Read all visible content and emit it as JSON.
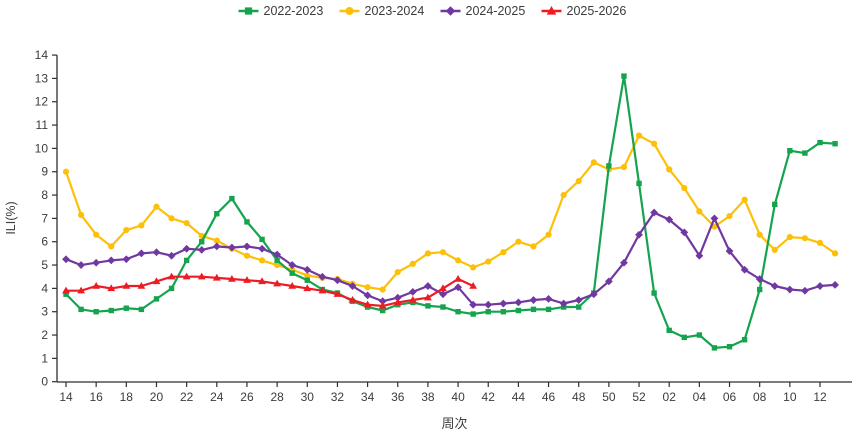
{
  "chart_data": {
    "type": "line",
    "title": "",
    "xlabel": "周次",
    "ylabel": "ILI(%)",
    "ylim": [
      0,
      14
    ],
    "ytick_step": 1,
    "grid": false,
    "legend_position": "top-center",
    "categories": [
      "14",
      "15",
      "16",
      "17",
      "18",
      "19",
      "20",
      "21",
      "22",
      "23",
      "24",
      "25",
      "26",
      "27",
      "28",
      "29",
      "30",
      "31",
      "32",
      "33",
      "34",
      "35",
      "36",
      "37",
      "38",
      "39",
      "40",
      "41",
      "42",
      "43",
      "44",
      "45",
      "46",
      "47",
      "48",
      "49",
      "50",
      "51",
      "52",
      "01",
      "02",
      "03",
      "04",
      "05",
      "06",
      "07",
      "08",
      "09",
      "10",
      "11",
      "12",
      "13"
    ],
    "x_ticks_shown": [
      "14",
      "16",
      "18",
      "20",
      "22",
      "24",
      "26",
      "28",
      "30",
      "32",
      "34",
      "36",
      "38",
      "40",
      "42",
      "44",
      "46",
      "48",
      "50",
      "52",
      "02",
      "04",
      "06",
      "08",
      "10",
      "12"
    ],
    "series": [
      {
        "name": "2022-2023",
        "color": "#14A44D",
        "marker": "square",
        "values": [
          3.75,
          3.1,
          3.0,
          3.05,
          3.15,
          3.1,
          3.55,
          4.0,
          5.2,
          6.0,
          7.2,
          7.85,
          6.85,
          6.1,
          5.2,
          4.65,
          4.35,
          3.95,
          3.8,
          3.45,
          3.2,
          3.05,
          3.3,
          3.4,
          3.25,
          3.2,
          3.0,
          2.9,
          3.0,
          3.0,
          3.05,
          3.1,
          3.1,
          3.2,
          3.2,
          3.8,
          9.25,
          13.1,
          8.5,
          3.8,
          2.2,
          1.9,
          2.0,
          1.45,
          1.5,
          1.8,
          3.95,
          7.6,
          9.9,
          9.8,
          10.25,
          10.2
        ]
      },
      {
        "name": "2023-2024",
        "color": "#FDC008",
        "marker": "circle",
        "values": [
          9.0,
          7.15,
          6.3,
          5.8,
          6.5,
          6.7,
          7.5,
          7.0,
          6.8,
          6.25,
          6.05,
          5.7,
          5.4,
          5.2,
          5.0,
          4.8,
          4.55,
          4.45,
          4.4,
          4.2,
          4.05,
          3.95,
          4.7,
          5.05,
          5.5,
          5.55,
          5.2,
          4.9,
          5.15,
          5.55,
          6.0,
          5.8,
          6.3,
          8.0,
          8.6,
          9.4,
          9.1,
          9.2,
          10.55,
          10.2,
          9.1,
          8.3,
          7.3,
          6.65,
          7.1,
          7.8,
          6.3,
          5.65,
          6.2,
          6.15,
          5.95,
          5.5
        ]
      },
      {
        "name": "2024-2025",
        "color": "#7038A0",
        "marker": "diamond",
        "values": [
          5.25,
          5.0,
          5.1,
          5.2,
          5.25,
          5.5,
          5.55,
          5.4,
          5.7,
          5.65,
          5.8,
          5.75,
          5.8,
          5.7,
          5.45,
          5.0,
          4.8,
          4.5,
          4.35,
          4.1,
          3.7,
          3.45,
          3.6,
          3.85,
          4.1,
          3.75,
          4.05,
          3.3,
          3.3,
          3.35,
          3.4,
          3.5,
          3.55,
          3.35,
          3.5,
          3.75,
          4.3,
          5.1,
          6.3,
          7.25,
          6.95,
          6.4,
          5.4,
          7.0,
          5.6,
          4.8,
          4.4,
          4.1,
          3.95,
          3.9,
          4.1,
          4.15
        ]
      },
      {
        "name": "2025-2026",
        "color": "#ED1C24",
        "marker": "triangle",
        "values": [
          3.9,
          3.9,
          4.1,
          4.0,
          4.1,
          4.1,
          4.3,
          4.5,
          4.5,
          4.5,
          4.45,
          4.4,
          4.35,
          4.3,
          4.2,
          4.1,
          4.0,
          3.9,
          3.75,
          3.5,
          3.3,
          3.25,
          3.4,
          3.5,
          3.6,
          4.0,
          4.4,
          4.1,
          null,
          null,
          null,
          null,
          null,
          null,
          null,
          null,
          null,
          null,
          null,
          null,
          null,
          null,
          null,
          null,
          null,
          null,
          null,
          null,
          null,
          null,
          null,
          null
        ]
      }
    ]
  },
  "style": {
    "axis_color": "#2f2f2f",
    "text_color": "#3c3c3c"
  }
}
